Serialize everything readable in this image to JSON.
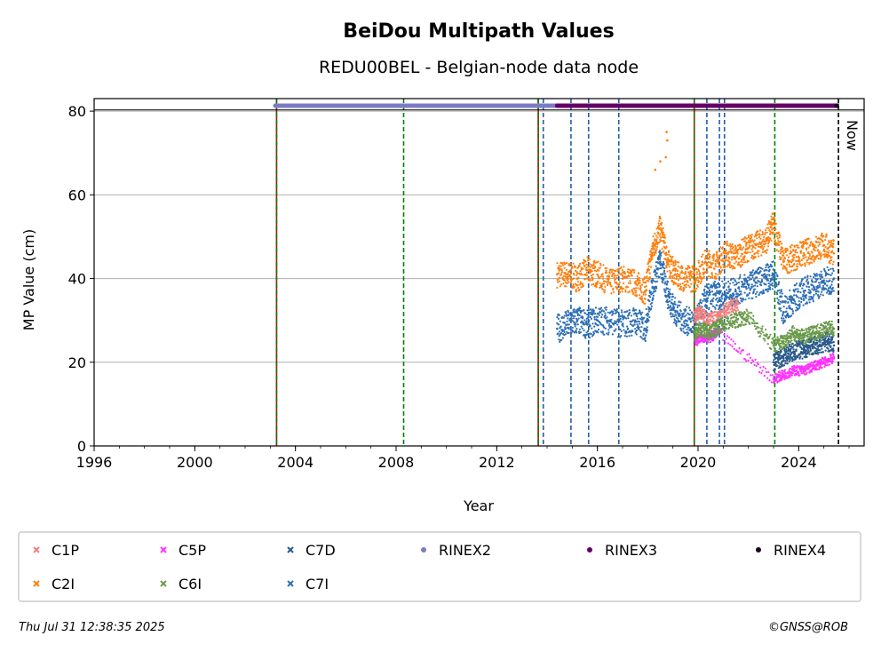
{
  "chart_data": {
    "type": "scatter",
    "title": "BeiDou Multipath Values",
    "subtitle": "REDU00BEL - Belgian-node data node",
    "xlabel": "Year",
    "ylabel": "MP Value (cm)",
    "xlim": [
      1996,
      2026.6
    ],
    "ylim": [
      0,
      83
    ],
    "xticks": [
      "1996",
      "2000",
      "2004",
      "2008",
      "2012",
      "2016",
      "2020",
      "2024"
    ],
    "yticks": [
      "0",
      "20",
      "40",
      "60",
      "80"
    ],
    "grid": "horizontal",
    "now_label": "Now",
    "now_year": 2025.58,
    "rinex_level": 81.3,
    "rinex_periods": [
      {
        "name": "RINEX2",
        "start": 2003.2,
        "end": 2014.4
      },
      {
        "name": "RINEX3",
        "start": 2014.4,
        "end": 2025.5
      },
      {
        "name": "RINEX4",
        "start": 2025.5,
        "end": 2025.6
      }
    ],
    "event_lines": [
      {
        "year": 2003.25,
        "color": "#cc0000",
        "style": "solid"
      },
      {
        "year": 2003.25,
        "color": "#008000",
        "style": "dashed"
      },
      {
        "year": 2008.3,
        "color": "#008000",
        "style": "dashed"
      },
      {
        "year": 2013.65,
        "color": "#cc0000",
        "style": "solid"
      },
      {
        "year": 2013.65,
        "color": "#008000",
        "style": "dashed"
      },
      {
        "year": 2013.85,
        "color": "#1f5fa8",
        "style": "dashed"
      },
      {
        "year": 2014.95,
        "color": "#1f5fa8",
        "style": "dashed"
      },
      {
        "year": 2015.65,
        "color": "#1f5fa8",
        "style": "dashed"
      },
      {
        "year": 2016.85,
        "color": "#1f5fa8",
        "style": "dashed"
      },
      {
        "year": 2019.85,
        "color": "#cc0000",
        "style": "solid"
      },
      {
        "year": 2019.85,
        "color": "#008000",
        "style": "dashed"
      },
      {
        "year": 2020.35,
        "color": "#1f5fa8",
        "style": "dashed"
      },
      {
        "year": 2020.85,
        "color": "#1f5fa8",
        "style": "dashed"
      },
      {
        "year": 2021.05,
        "color": "#1f5fa8",
        "style": "dashed"
      },
      {
        "year": 2023.05,
        "color": "#008000",
        "style": "dashed"
      }
    ],
    "series": [
      {
        "name": "C2I",
        "color": "#ff7f0e",
        "marker": "x",
        "x": [
          2014.4,
          2014.8,
          2015.2,
          2015.6,
          2016.0,
          2016.5,
          2017.0,
          2017.5,
          2017.9,
          2018.2,
          2018.5,
          2018.8,
          2019.1,
          2019.5,
          2019.9,
          2020.3,
          2020.7,
          2021.1,
          2021.5,
          2021.9,
          2022.3,
          2022.7,
          2023.0,
          2023.4,
          2023.8,
          2024.2,
          2024.6,
          2025.0,
          2025.4
        ],
        "y": [
          41,
          41,
          40,
          42,
          41,
          39,
          40,
          39,
          37,
          47,
          52,
          44,
          41,
          40,
          40,
          44,
          43,
          46,
          45,
          47,
          48,
          49,
          53,
          44,
          45,
          46,
          47,
          48,
          46
        ]
      },
      {
        "name": "C7I",
        "color": "#2e6fb5",
        "marker": "x",
        "x": [
          2014.4,
          2014.8,
          2015.2,
          2015.6,
          2016.0,
          2016.5,
          2017.0,
          2017.5,
          2017.9,
          2018.2,
          2018.5,
          2018.8,
          2019.1,
          2019.5,
          2019.9,
          2020.3,
          2020.7,
          2021.1,
          2021.5,
          2021.9,
          2022.3,
          2022.7,
          2023.0,
          2023.4,
          2023.8,
          2024.2,
          2024.6,
          2025.0,
          2025.4
        ],
        "y": [
          28,
          29,
          30,
          29,
          30,
          30,
          29,
          30,
          28,
          38,
          44,
          36,
          32,
          30,
          29,
          35,
          36,
          36,
          37,
          38,
          39,
          40,
          41,
          32,
          35,
          37,
          38,
          39,
          40
        ]
      },
      {
        "name": "C7D",
        "color": "#2a5a8a",
        "marker": "x",
        "x": [
          2023.0,
          2023.3,
          2023.6,
          2023.9,
          2024.2,
          2024.5,
          2024.8,
          2025.1,
          2025.4
        ],
        "y": [
          20,
          21,
          22,
          23,
          23,
          24,
          24,
          25,
          24
        ]
      },
      {
        "name": "C1P",
        "color": "#f08080",
        "marker": "x",
        "x": [
          2019.85,
          2020.1,
          2020.4,
          2020.8,
          2021.2,
          2021.6
        ],
        "y": [
          31,
          32,
          30,
          31,
          33,
          34
        ]
      },
      {
        "name": "C5P",
        "color": "#ff33ff",
        "marker": "x",
        "x": [
          2019.9,
          2020.2,
          2020.5,
          2020.8,
          2023.0,
          2023.4,
          2023.8,
          2024.2,
          2024.6,
          2025.0,
          2025.4
        ],
        "y": [
          25,
          26,
          26,
          27,
          16,
          17,
          18,
          18,
          19,
          20,
          21
        ]
      },
      {
        "name": "C6I",
        "color": "#6a9a4a",
        "marker": "x",
        "x": [
          2019.85,
          2020.1,
          2020.4,
          2020.7,
          2021.0,
          2021.5,
          2022.0,
          2023.0,
          2023.4,
          2023.8,
          2024.2,
          2024.6,
          2025.0,
          2025.4
        ],
        "y": [
          27,
          28,
          27,
          28,
          29,
          30,
          31,
          24,
          25,
          27,
          26,
          27,
          28,
          28
        ]
      },
      {
        "name": "RINEX2",
        "color": "#7b7bc8",
        "marker": "o"
      },
      {
        "name": "RINEX3",
        "color": "#660066",
        "marker": "o"
      },
      {
        "name": "RINEX4",
        "color": "#1a0020",
        "marker": "o"
      }
    ]
  },
  "footer": {
    "timestamp": "Thu Jul 31 12:38:35 2025",
    "copyright": "©GNSS@ROB"
  }
}
